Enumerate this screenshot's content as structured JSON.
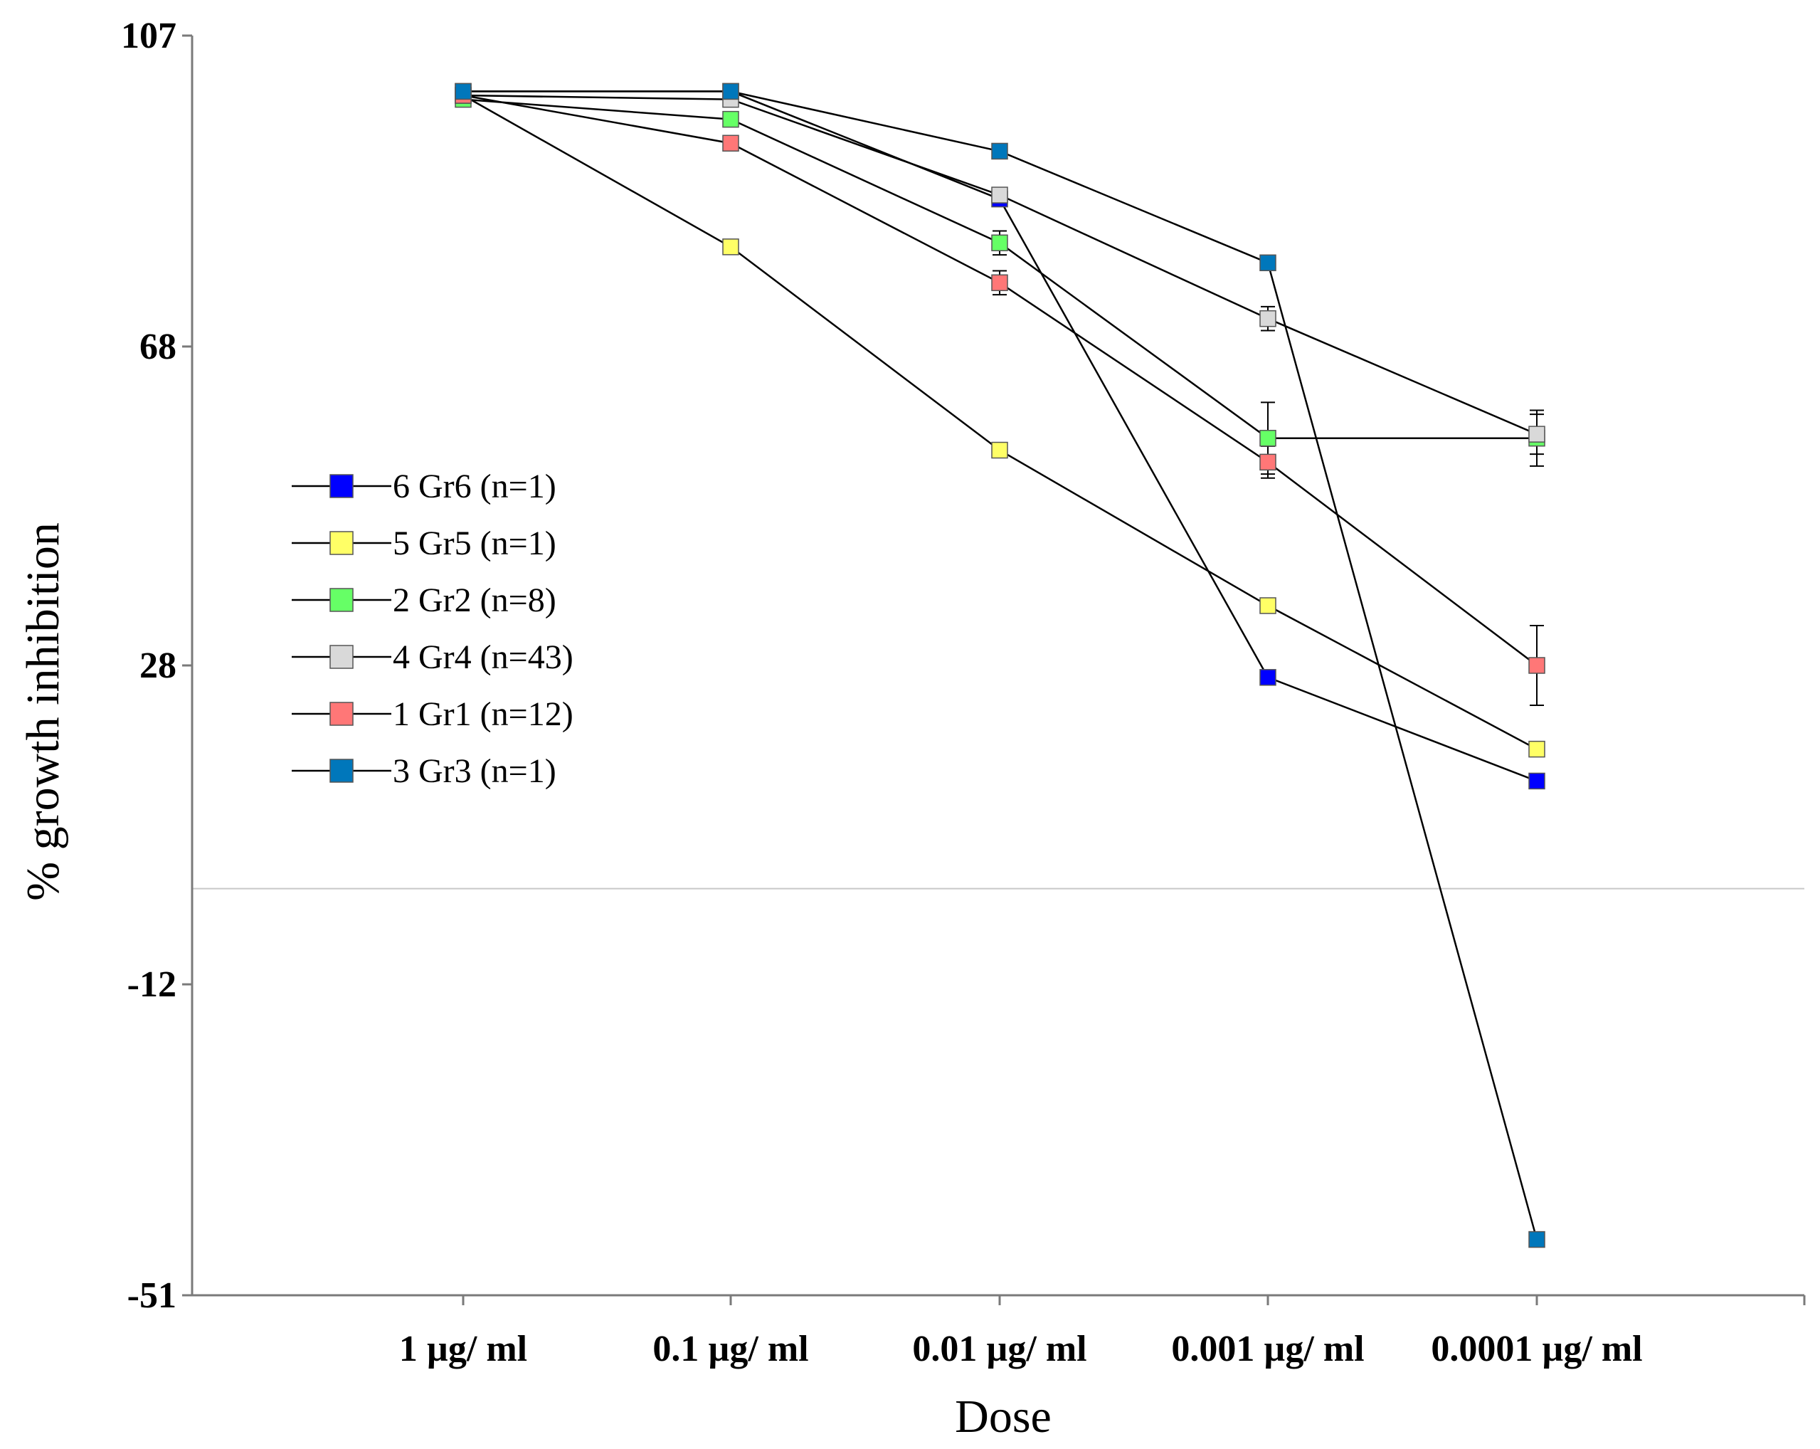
{
  "chart_data": {
    "type": "line",
    "title": "",
    "xlabel": "Dose",
    "ylabel": "% growth inhibition",
    "categories": [
      "1 µg/ ml",
      "0.1 µg/ ml",
      "0.01 µg/ ml",
      "0.001 µg/ ml",
      "0.0001 µg/ ml"
    ],
    "ylim": [
      -51,
      107
    ],
    "yticks": [
      "107",
      "68",
      "28",
      "-12",
      "-51"
    ],
    "yticks_values": [
      107,
      68,
      28,
      -12,
      -51
    ],
    "zero_line": 0,
    "grid": false,
    "legend_position": "left-middle",
    "series": [
      {
        "label": "6  Gr6 (n=1)",
        "color": "#0000ff",
        "values": [
          100,
          100,
          86.5,
          26.5,
          13.5
        ],
        "errors": [
          0,
          0,
          0,
          0,
          0
        ]
      },
      {
        "label": "5  Gr5 (n=1)",
        "color": "#ffff66",
        "values": [
          99.5,
          80.5,
          55,
          35.5,
          17.5
        ],
        "errors": [
          0,
          0,
          0,
          0,
          0
        ]
      },
      {
        "label": "2 Gr2 (n=8)",
        "color": "#66ff66",
        "values": [
          99,
          96.5,
          81,
          56.5,
          56.5
        ],
        "errors": [
          0,
          0,
          1.5,
          4.5,
          3.5
        ]
      },
      {
        "label": "4  Gr4 (n=43)",
        "color": "#d9d9d9",
        "values": [
          99.5,
          99,
          87,
          71.5,
          57
        ],
        "errors": [
          0,
          0,
          0,
          1.5,
          2.5
        ]
      },
      {
        "label": "1 Gr1 (n=12)",
        "color": "#ff7777",
        "values": [
          99.5,
          93.5,
          76,
          53.5,
          28
        ],
        "errors": [
          0,
          0,
          1.5,
          2,
          5
        ]
      },
      {
        "label": "3  Gr3 (n=1)",
        "color": "#0077bb",
        "values": [
          100,
          100,
          92.5,
          78.5,
          -44
        ],
        "errors": [
          0,
          0,
          0,
          0,
          0
        ]
      }
    ]
  }
}
